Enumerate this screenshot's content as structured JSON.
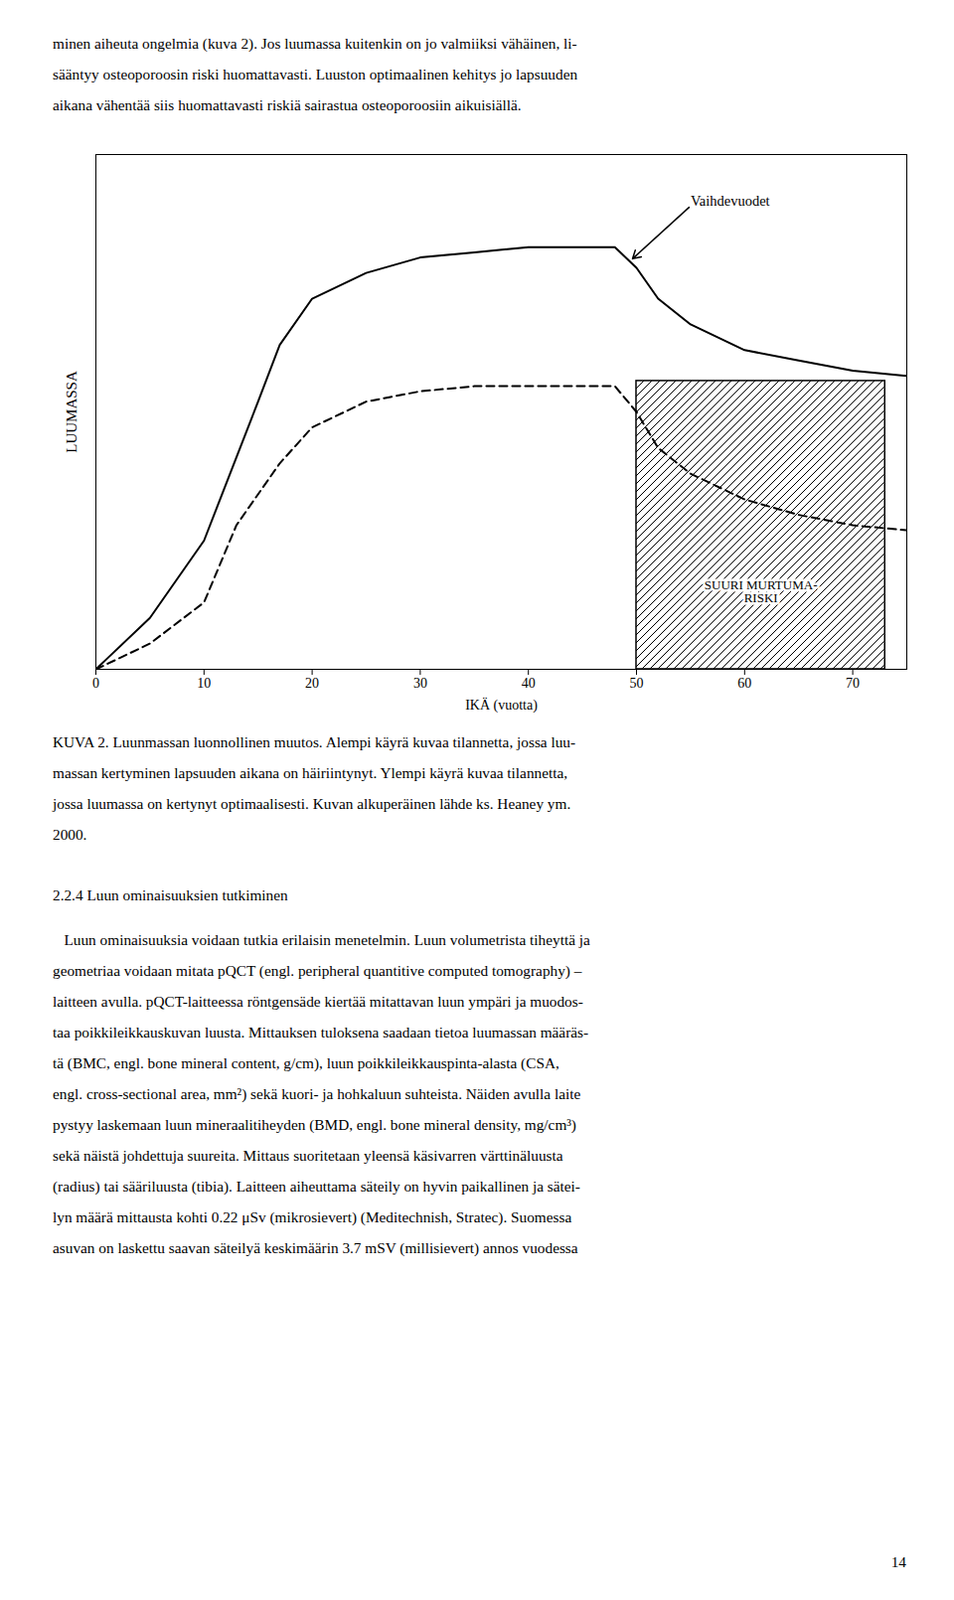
{
  "text_above": [
    "minen aiheuta ongelmia (kuva 2). Jos luumassa kuitenkin on jo valmiiksi vähäinen, li-",
    "sääntyy osteoporoosin riski huomattavasti. Luuston optimaalinen kehitys jo lapsuuden",
    "aikana vähentää siis huomattavasti riskiä sairastua osteoporoosiin aikuisiällä."
  ],
  "chart_data": {
    "type": "line",
    "xlabel": "IKÄ (vuotta)",
    "ylabel": "LUUMASSA",
    "xlim": [
      0,
      75
    ],
    "ylim": [
      0,
      1.0
    ],
    "xticks": [
      0,
      10,
      20,
      30,
      40,
      50,
      60,
      70
    ],
    "yticks": [],
    "tick_labels": "x",
    "grid": false,
    "series": [
      {
        "color": "#000000",
        "line_style": "solid",
        "x": [
          0,
          1,
          5,
          10,
          15,
          17,
          20,
          25,
          30,
          35,
          40,
          45,
          48,
          50,
          52,
          55,
          60,
          65,
          70,
          75
        ],
        "values": [
          0,
          0.02,
          0.1,
          0.25,
          0.52,
          0.63,
          0.72,
          0.77,
          0.8,
          0.81,
          0.82,
          0.82,
          0.82,
          0.78,
          0.72,
          0.67,
          0.62,
          0.6,
          0.58,
          0.57
        ]
      },
      {
        "color": "#000000",
        "line_style": "dashed",
        "x": [
          0,
          1,
          5,
          10,
          13,
          17,
          20,
          25,
          30,
          35,
          40,
          45,
          48,
          50,
          52,
          55,
          60,
          65,
          70,
          75
        ],
        "values": [
          0,
          0.01,
          0.05,
          0.13,
          0.28,
          0.4,
          0.47,
          0.52,
          0.54,
          0.55,
          0.55,
          0.55,
          0.55,
          0.5,
          0.43,
          0.38,
          0.33,
          0.3,
          0.28,
          0.27
        ]
      }
    ],
    "regions": [
      {
        "x": [
          50,
          73
        ],
        "y": [
          0.0,
          0.56
        ],
        "color": "#000000",
        "label": [
          "SUURI MURTUMA-",
          "RISKI"
        ],
        "label_x": 61.5,
        "label_y": 0.13
      }
    ],
    "annotations": [
      {
        "text": "Vaihdevuodet",
        "x": 49.5,
        "y": 0.795,
        "text_x": 55,
        "text_y": 0.9
      }
    ]
  },
  "caption": [
    "KUVA 2. Luunmassan luonnollinen muutos. Alempi käyrä kuvaa tilannetta, jossa luu-",
    "massan kertyminen lapsuuden aikana on häiriintynyt. Ylempi käyrä kuvaa tilannetta,",
    "jossa luumassa on kertynyt optimaalisesti. Kuvan alkuperäinen lähde ks. Heaney ym.",
    "2000."
  ],
  "heading": "2.2.4 Luun ominaisuuksien tutkiminen",
  "text_below": [
    "   Luun ominaisuuksia voidaan tutkia erilaisin menetelmin. Luun volumetrista tiheyttä ja",
    "geometriaa voidaan mitata pQCT (engl. peripheral quantitive computed tomography) –",
    "laitteen avulla. pQCT-laitteessa röntgensäde kiertää mitattavan luun ympäri ja muodos-",
    "taa poikkileikkauskuvan luusta. Mittauksen tuloksena saadaan tietoa luumassan määräs-",
    "tä (BMC, engl. bone mineral content, g/cm), luun poikkileikkauspinta-alasta (CSA,",
    "engl. cross-sectional area, mm²) sekä kuori- ja hohkaluun suhteista. Näiden avulla laite",
    "pystyy laskemaan luun mineraalitiheyden (BMD, engl. bone mineral density, mg/cm³)",
    "sekä näistä johdettuja suureita. Mittaus suoritetaan yleensä käsivarren värttinäluusta",
    "(radius) tai sääriluusta (tibia). Laitteen aiheuttama säteily on hyvin paikallinen ja sätei-",
    "lyn määrä mittausta kohti 0.22 μSv (mikrosievert) (Meditechnish, Stratec). Suomessa",
    "asuvan on laskettu saavan säteilyä keskimäärin 3.7 mSV (millisievert) annos vuodessa"
  ],
  "page_number": "14"
}
